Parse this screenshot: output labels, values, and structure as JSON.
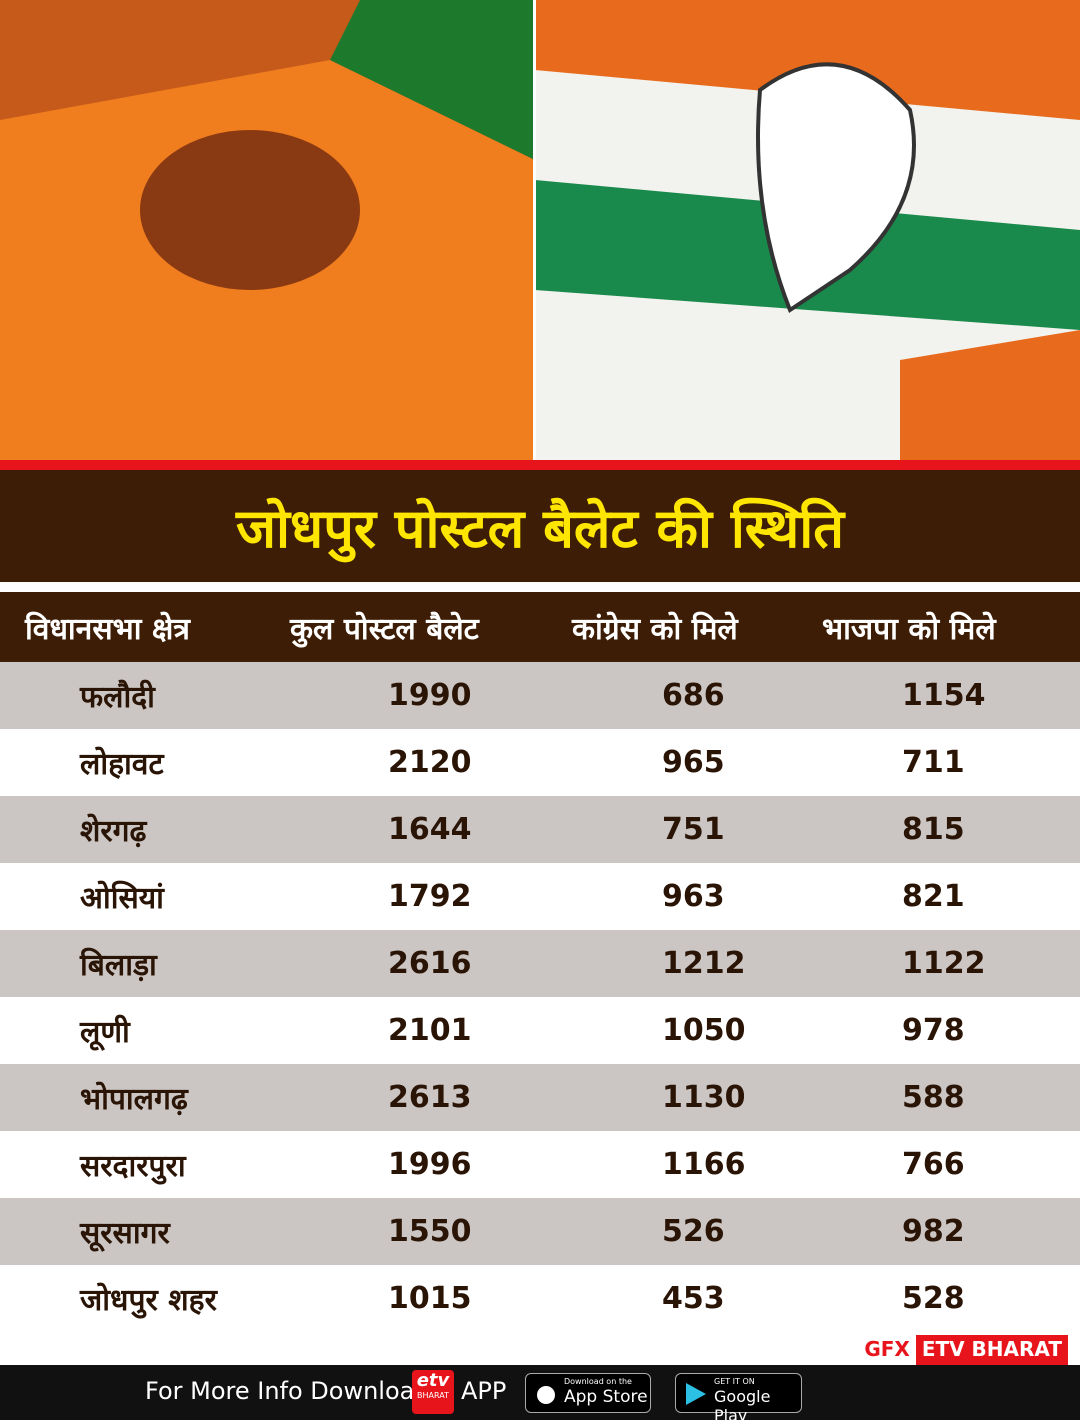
{
  "header": {
    "title": "जोधपुर पोस्टल बैलेट की स्थिति"
  },
  "table": {
    "columns": [
      "विधानसभा क्षेत्र",
      "कुल पोस्टल बैलेट",
      "कांग्रेस को मिले",
      "भाजपा को मिले"
    ],
    "rows": [
      [
        "फलौदी",
        1990,
        686,
        1154
      ],
      [
        "लोहावट",
        2120,
        965,
        711
      ],
      [
        "शेरगढ़",
        1644,
        751,
        815
      ],
      [
        "ओसियां",
        1792,
        963,
        821
      ],
      [
        "बिलाड़ा",
        2616,
        1212,
        1122
      ],
      [
        "लूणी",
        2101,
        1050,
        978
      ],
      [
        "भोपालगढ़",
        2613,
        1130,
        588
      ],
      [
        "सरदारपुरा",
        1996,
        1166,
        766
      ],
      [
        "सूरसागर",
        1550,
        526,
        982
      ],
      [
        "जोधपुर शहर",
        1015,
        453,
        528
      ]
    ]
  },
  "credit": {
    "gfx": "GFX",
    "brand": "ETV BHARAT"
  },
  "footer": {
    "text": "For More Info Download",
    "logo": "etv",
    "logo_sub": "BHARAT",
    "app": "APP",
    "appstore_small": "Download on the",
    "appstore": "App Store",
    "play_small": "GET IT ON",
    "play": "Google Play"
  }
}
